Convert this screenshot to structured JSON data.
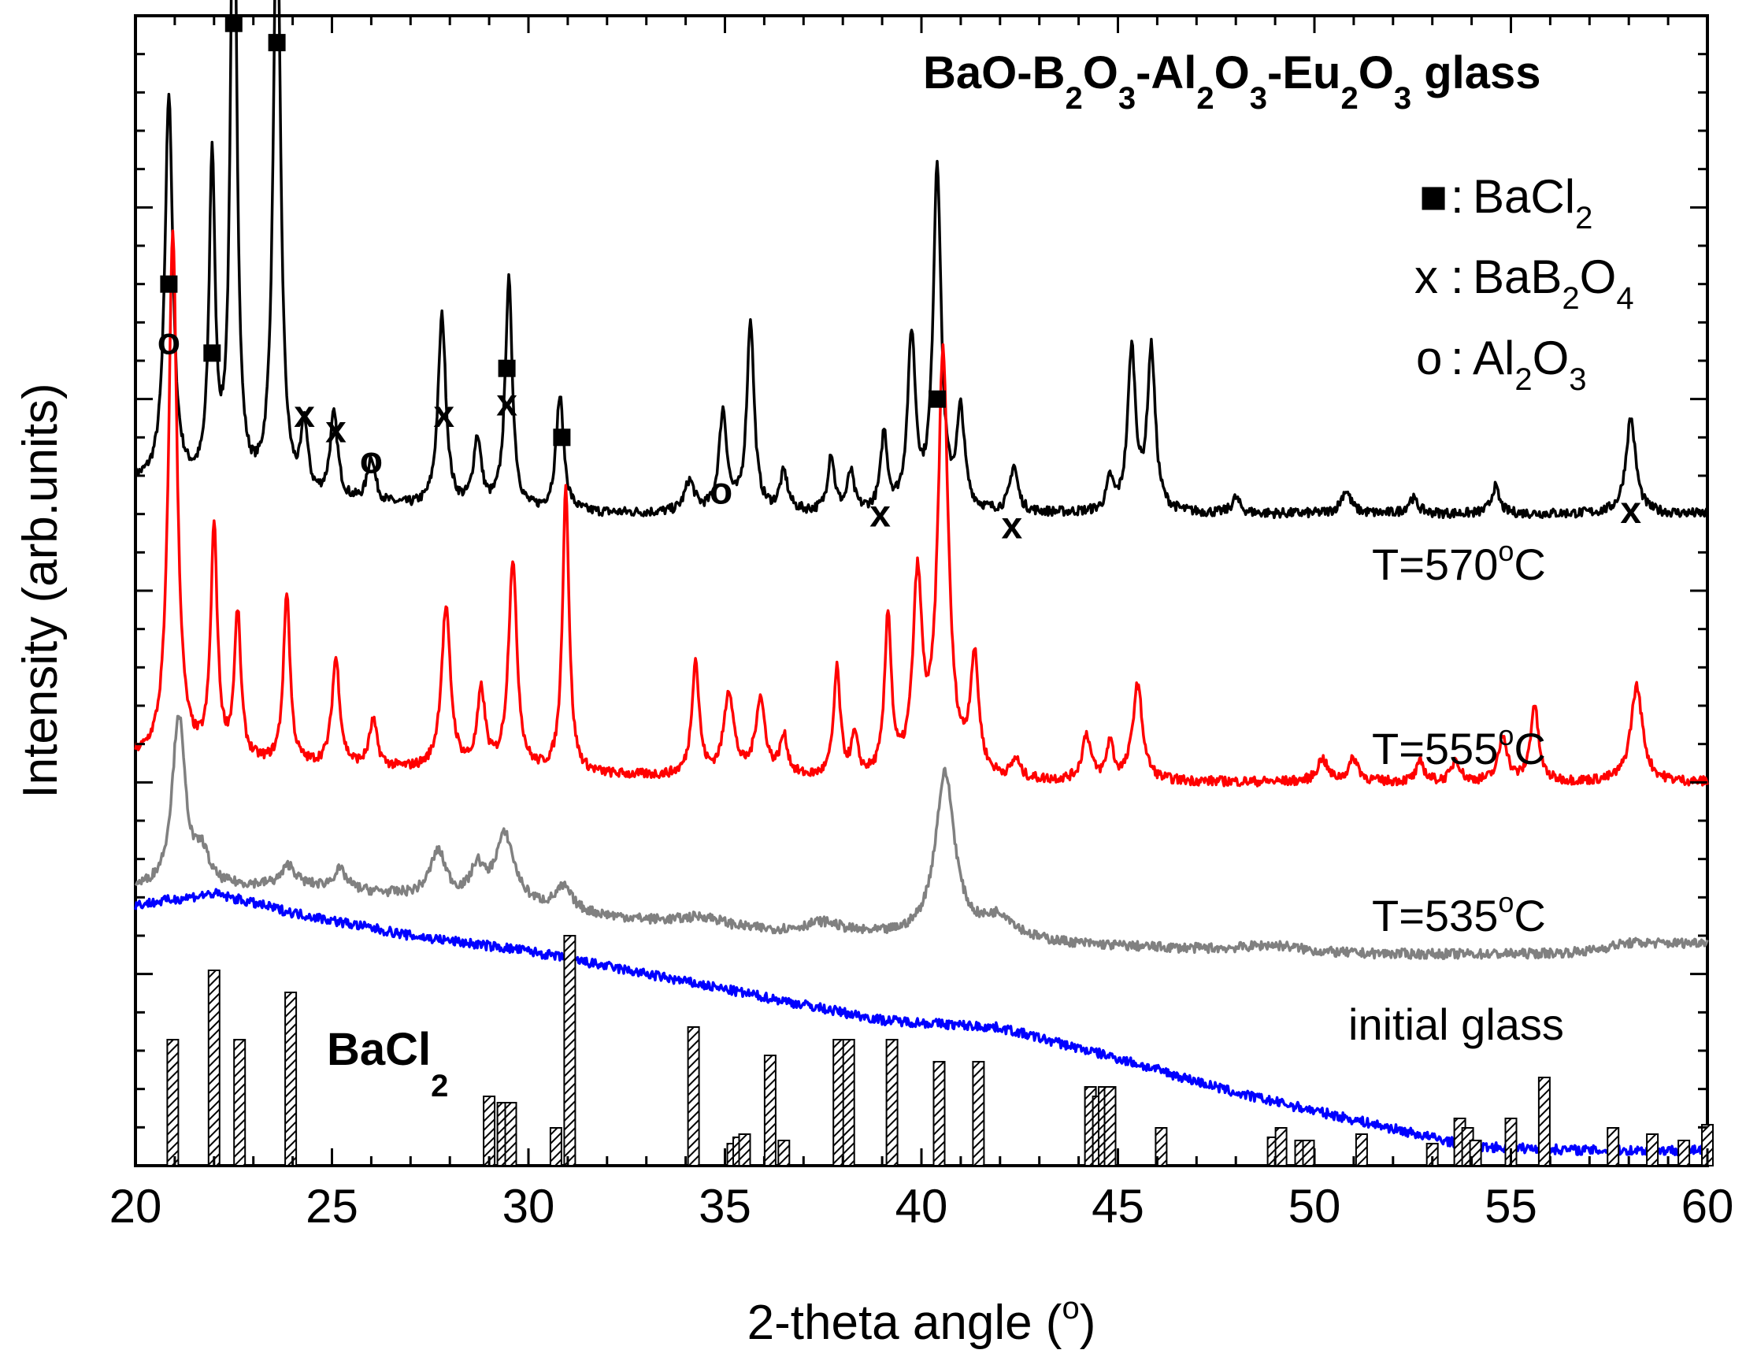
{
  "chart_data": {
    "type": "line",
    "title_parts": {
      "a": "BaO-B",
      "s1": "2",
      "b": "O",
      "s2": "3",
      "c": "-Al",
      "s3": "2",
      "d": "O",
      "s4": "3",
      "e": "-Eu",
      "s5": "2",
      "f": "O",
      "s6": "3",
      "g": " glass"
    },
    "xlabel": "2-theta angle (",
    "xlabel_sup": "o",
    "xlabel_end": ")",
    "ylabel": "Intensity (arb.units)",
    "xlim": [
      20,
      60
    ],
    "xticks": [
      "20",
      "25",
      "30",
      "35",
      "40",
      "45",
      "50",
      "55",
      "60"
    ],
    "legend": [
      {
        "symbol": "■",
        "sep": ":",
        "text": "BaCl",
        "sub": "2",
        "text2": "",
        "sub2": ""
      },
      {
        "symbol": "x",
        "sep": ":",
        "text": "BaB",
        "sub": "2",
        "text2": "O",
        "sub2": "4"
      },
      {
        "symbol": "o",
        "sep": ":",
        "text": "Al",
        "sub": "2",
        "text2": "O",
        "sub2": "3"
      }
    ],
    "series": [
      {
        "name": "T=570",
        "label": "T=570",
        "label_sup": "o",
        "label_unit": "C",
        "color": "#000000",
        "baseline": 1.7,
        "bg": [
          [
            20,
            0.08
          ],
          [
            24,
            0.03
          ],
          [
            30,
            0.0
          ],
          [
            40,
            0.0
          ],
          [
            60,
            0.0
          ]
        ],
        "peaks": [
          [
            20.85,
            1.02,
            0.12
          ],
          [
            21.95,
            0.85,
            0.09
          ],
          [
            22.5,
            1.85,
            0.09
          ],
          [
            23.6,
            1.6,
            0.11
          ],
          [
            24.3,
            0.18,
            0.1
          ],
          [
            25.05,
            0.22,
            0.12
          ],
          [
            26.0,
            0.12,
            0.12
          ],
          [
            27.8,
            0.5,
            0.12
          ],
          [
            28.7,
            0.18,
            0.12
          ],
          [
            29.5,
            0.6,
            0.11
          ],
          [
            30.8,
            0.3,
            0.12
          ],
          [
            34.1,
            0.08,
            0.15
          ],
          [
            34.95,
            0.26,
            0.12
          ],
          [
            35.65,
            0.5,
            0.11
          ],
          [
            36.5,
            0.1,
            0.12
          ],
          [
            37.7,
            0.15,
            0.1
          ],
          [
            38.2,
            0.1,
            0.1
          ],
          [
            39.05,
            0.2,
            0.1
          ],
          [
            39.75,
            0.45,
            0.12
          ],
          [
            40.4,
            0.9,
            0.12
          ],
          [
            41.0,
            0.25,
            0.12
          ],
          [
            42.35,
            0.12,
            0.12
          ],
          [
            44.8,
            0.08,
            0.1
          ],
          [
            45.35,
            0.42,
            0.12
          ],
          [
            45.85,
            0.42,
            0.12
          ],
          [
            48.0,
            0.04,
            0.12
          ],
          [
            50.8,
            0.06,
            0.15
          ],
          [
            52.5,
            0.04,
            0.15
          ],
          [
            54.6,
            0.07,
            0.12
          ],
          [
            58.05,
            0.25,
            0.15
          ]
        ]
      },
      {
        "name": "T=555",
        "label": "T=555",
        "label_sup": "o",
        "label_unit": "C",
        "color": "#ff0000",
        "baseline": 1.0,
        "bg": [
          [
            20,
            0.06
          ],
          [
            24,
            0.04
          ],
          [
            30,
            0.02
          ],
          [
            40,
            0.0
          ],
          [
            60,
            0.0
          ]
        ],
        "peaks": [
          [
            20.95,
            1.38,
            0.13
          ],
          [
            22.0,
            0.6,
            0.1
          ],
          [
            22.6,
            0.38,
            0.1
          ],
          [
            23.85,
            0.45,
            0.1
          ],
          [
            25.1,
            0.28,
            0.12
          ],
          [
            26.05,
            0.12,
            0.12
          ],
          [
            27.9,
            0.42,
            0.14
          ],
          [
            28.8,
            0.2,
            0.12
          ],
          [
            29.6,
            0.55,
            0.13
          ],
          [
            30.95,
            0.75,
            0.1
          ],
          [
            34.25,
            0.3,
            0.11
          ],
          [
            35.1,
            0.22,
            0.15
          ],
          [
            35.9,
            0.2,
            0.15
          ],
          [
            36.5,
            0.1,
            0.12
          ],
          [
            37.85,
            0.28,
            0.1
          ],
          [
            38.3,
            0.1,
            0.1
          ],
          [
            39.15,
            0.42,
            0.1
          ],
          [
            39.9,
            0.5,
            0.14
          ],
          [
            40.55,
            1.1,
            0.16
          ],
          [
            41.35,
            0.3,
            0.13
          ],
          [
            42.4,
            0.05,
            0.12
          ],
          [
            44.2,
            0.12,
            0.13
          ],
          [
            44.8,
            0.1,
            0.1
          ],
          [
            45.5,
            0.25,
            0.15
          ],
          [
            50.2,
            0.06,
            0.15
          ],
          [
            51.0,
            0.06,
            0.15
          ],
          [
            52.7,
            0.05,
            0.12
          ],
          [
            53.6,
            0.06,
            0.12
          ],
          [
            54.8,
            0.12,
            0.13
          ],
          [
            55.6,
            0.2,
            0.12
          ],
          [
            58.2,
            0.25,
            0.18
          ]
        ]
      },
      {
        "name": "T=535",
        "label": "T=535",
        "label_sup": "o",
        "label_unit": "C",
        "color": "#808080",
        "baseline": 0.55,
        "bg": [
          [
            20,
            0.17
          ],
          [
            24,
            0.18
          ],
          [
            30,
            0.12
          ],
          [
            35,
            0.06
          ],
          [
            40,
            0.04
          ],
          [
            45,
            0.02
          ],
          [
            50,
            0.0
          ],
          [
            57,
            0.0
          ],
          [
            60,
            0.03
          ]
        ],
        "peaks": [
          [
            21.1,
            0.45,
            0.2
          ],
          [
            21.7,
            0.08,
            0.2
          ],
          [
            23.9,
            0.05,
            0.2
          ],
          [
            25.2,
            0.05,
            0.2
          ],
          [
            27.7,
            0.12,
            0.25
          ],
          [
            28.7,
            0.08,
            0.2
          ],
          [
            29.4,
            0.18,
            0.3
          ],
          [
            30.9,
            0.06,
            0.25
          ],
          [
            34.5,
            0.03,
            0.8
          ],
          [
            37.5,
            0.03,
            0.6
          ],
          [
            40.6,
            0.43,
            0.3
          ],
          [
            42.0,
            0.06,
            0.5
          ],
          [
            49.0,
            0.02,
            1.0
          ],
          [
            58.0,
            0.02,
            1.0
          ]
        ]
      },
      {
        "name": "initial glass",
        "label": "initial glass",
        "label_sup": "",
        "label_unit": "",
        "color": "#0000ff",
        "baseline": 0.0,
        "bg": [
          [
            20,
            0.68
          ],
          [
            22,
            0.71
          ],
          [
            24,
            0.66
          ],
          [
            27,
            0.6
          ],
          [
            30,
            0.56
          ],
          [
            33,
            0.5
          ],
          [
            36,
            0.44
          ],
          [
            39,
            0.38
          ],
          [
            42,
            0.36
          ],
          [
            45,
            0.28
          ],
          [
            48,
            0.19
          ],
          [
            51,
            0.12
          ],
          [
            54,
            0.05
          ],
          [
            57,
            0.04
          ],
          [
            60,
            0.04
          ]
        ],
        "peaks": []
      }
    ],
    "reference": {
      "name": "BaCl",
      "sub": "2",
      "bars": [
        [
          20.95,
          0.4
        ],
        [
          22.0,
          0.62
        ],
        [
          22.65,
          0.4
        ],
        [
          23.95,
          0.55
        ],
        [
          29.0,
          0.22
        ],
        [
          29.35,
          0.2
        ],
        [
          29.55,
          0.2
        ],
        [
          30.7,
          0.12
        ],
        [
          31.05,
          0.73
        ],
        [
          34.2,
          0.44
        ],
        [
          35.2,
          0.07
        ],
        [
          35.35,
          0.09
        ],
        [
          35.5,
          0.1
        ],
        [
          36.15,
          0.35
        ],
        [
          36.5,
          0.08
        ],
        [
          37.9,
          0.4
        ],
        [
          38.15,
          0.4
        ],
        [
          39.25,
          0.4
        ],
        [
          40.45,
          0.33
        ],
        [
          41.45,
          0.33
        ],
        [
          44.3,
          0.25
        ],
        [
          44.5,
          0.22
        ],
        [
          44.65,
          0.25
        ],
        [
          44.8,
          0.25
        ],
        [
          46.1,
          0.12
        ],
        [
          48.95,
          0.09
        ],
        [
          49.15,
          0.12
        ],
        [
          49.65,
          0.08
        ],
        [
          49.85,
          0.08
        ],
        [
          51.2,
          0.1
        ],
        [
          53.0,
          0.07
        ],
        [
          53.7,
          0.15
        ],
        [
          53.9,
          0.12
        ],
        [
          54.1,
          0.08
        ],
        [
          55.0,
          0.15
        ],
        [
          55.85,
          0.28
        ],
        [
          57.6,
          0.12
        ],
        [
          58.6,
          0.1
        ],
        [
          59.4,
          0.08
        ],
        [
          60.0,
          0.13
        ]
      ]
    },
    "markers": [
      {
        "type": "square",
        "x": 20.85,
        "y": 2.3
      },
      {
        "type": "o",
        "x": 20.85,
        "y": 2.15
      },
      {
        "type": "square",
        "x": 21.95,
        "y": 2.12
      },
      {
        "type": "square",
        "x": 22.5,
        "y": 2.98
      },
      {
        "type": "square",
        "x": 23.6,
        "y": 2.93
      },
      {
        "type": "x",
        "x": 24.3,
        "y": 1.96
      },
      {
        "type": "x",
        "x": 25.1,
        "y": 1.92
      },
      {
        "type": "o",
        "x": 26.0,
        "y": 1.84
      },
      {
        "type": "x",
        "x": 27.85,
        "y": 1.96
      },
      {
        "type": "square",
        "x": 29.45,
        "y": 2.08
      },
      {
        "type": "x",
        "x": 29.45,
        "y": 1.99
      },
      {
        "type": "square",
        "x": 30.85,
        "y": 1.9
      },
      {
        "type": "o",
        "x": 34.9,
        "y": 1.76
      },
      {
        "type": "x",
        "x": 38.95,
        "y": 1.7
      },
      {
        "type": "square",
        "x": 40.4,
        "y": 2.0
      },
      {
        "type": "x",
        "x": 42.3,
        "y": 1.67
      },
      {
        "type": "x",
        "x": 58.05,
        "y": 1.71
      }
    ]
  }
}
